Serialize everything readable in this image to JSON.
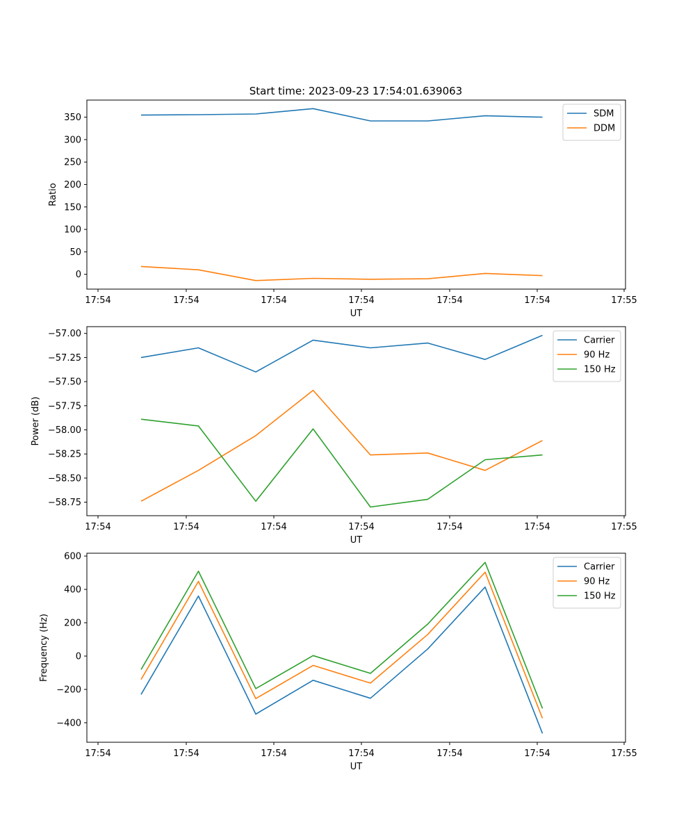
{
  "title": "Start time: 2023-09-23 17:54:01.639063",
  "colors": {
    "blue": "#1f77b4",
    "orange": "#ff7f0e",
    "green": "#2ca02c"
  },
  "chart_data": [
    {
      "type": "line",
      "title": "Start time: 2023-09-23 17:54:01.639063",
      "xlabel": "UT",
      "ylabel": "Ratio",
      "x_ticks": [
        "17:54",
        "17:54",
        "17:54",
        "17:54",
        "17:54",
        "17:54",
        "17:55"
      ],
      "y_ticks": [
        0,
        50,
        100,
        150,
        200,
        250,
        300,
        350
      ],
      "ylim": [
        -33,
        388
      ],
      "legend_position": "top-right",
      "series": [
        {
          "name": "SDM",
          "color": "#1f77b4",
          "values": [
            354.5,
            355.5,
            357,
            369,
            341.5,
            341.5,
            353,
            350
          ]
        },
        {
          "name": "DDM",
          "color": "#ff7f0e",
          "values": [
            17.5,
            10,
            -14,
            -9,
            -11,
            -10,
            2,
            -3
          ]
        }
      ]
    },
    {
      "type": "line",
      "xlabel": "UT",
      "ylabel": "Power (dB)",
      "x_ticks": [
        "17:54",
        "17:54",
        "17:54",
        "17:54",
        "17:54",
        "17:54",
        "17:55"
      ],
      "y_ticks": [
        -57.0,
        -57.25,
        -57.5,
        -57.75,
        -58.0,
        -58.25,
        -58.5,
        -58.75
      ],
      "y_tick_labels": [
        "−57.00",
        "−57.25",
        "−57.50",
        "−57.75",
        "−58.00",
        "−58.25",
        "−58.50",
        "−58.75"
      ],
      "ylim": [
        -58.89,
        -56.93
      ],
      "legend_position": "top-right",
      "series": [
        {
          "name": "Carrier",
          "color": "#1f77b4",
          "values": [
            -57.25,
            -57.15,
            -57.4,
            -57.07,
            -57.15,
            -57.1,
            -57.27,
            -57.02
          ]
        },
        {
          "name": "90 Hz",
          "color": "#ff7f0e",
          "values": [
            -58.74,
            -58.42,
            -58.06,
            -57.59,
            -58.26,
            -58.24,
            -58.42,
            -58.11
          ]
        },
        {
          "name": "150 Hz",
          "color": "#2ca02c",
          "values": [
            -57.89,
            -57.96,
            -58.74,
            -57.99,
            -58.8,
            -58.72,
            -58.31,
            -58.26
          ]
        }
      ]
    },
    {
      "type": "line",
      "xlabel": "UT",
      "ylabel": "Frequency (Hz)",
      "x_ticks": [
        "17:54",
        "17:54",
        "17:54",
        "17:54",
        "17:54",
        "17:54",
        "17:55"
      ],
      "y_ticks": [
        -400,
        -200,
        0,
        200,
        400,
        600
      ],
      "y_tick_labels": [
        "−400",
        "−200",
        "0",
        "200",
        "400",
        "600"
      ],
      "ylim": [
        -517,
        617
      ],
      "legend_position": "top-right",
      "series": [
        {
          "name": "Carrier",
          "color": "#1f77b4",
          "values": [
            -230,
            360,
            -348,
            -145,
            -253,
            43,
            414,
            -464
          ]
        },
        {
          "name": "90 Hz",
          "color": "#ff7f0e",
          "values": [
            -140,
            448,
            -255,
            -56,
            -162,
            130,
            503,
            -373
          ]
        },
        {
          "name": "150 Hz",
          "color": "#2ca02c",
          "values": [
            -81,
            509,
            -195,
            3,
            -104,
            192,
            562,
            -314
          ]
        }
      ]
    }
  ]
}
